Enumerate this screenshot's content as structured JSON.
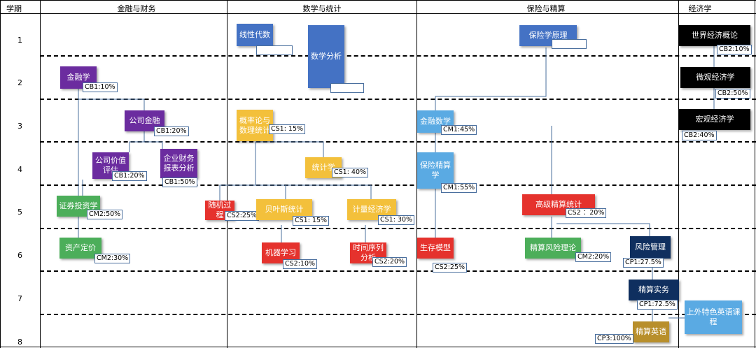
{
  "headers": {
    "semester": "学期",
    "finance": "金融与财务",
    "math": "数学与统计",
    "insurance": "保险与精算",
    "economics": "经济学"
  },
  "semesters": [
    "1",
    "2",
    "3",
    "4",
    "5",
    "6",
    "7",
    "8"
  ],
  "courses": {
    "jinrongxue": {
      "name": "金融学",
      "tag": "CB1:10%"
    },
    "gongsijinrong": {
      "name": "公司金融",
      "tag": "CB1:20%"
    },
    "gongsijiazhi": {
      "name": "公司价值评估",
      "tag": "CB1:20%"
    },
    "qiyecaiwu": {
      "name": "企业财务报表分析",
      "tag": "CB1:50%"
    },
    "zhengquan": {
      "name": "证券投资学",
      "tag": "CM2:50%"
    },
    "zichandingjia": {
      "name": "资产定价",
      "tag": "CM2:30%"
    },
    "xianxingdaishu": {
      "name": "线性代数"
    },
    "shuxuefenxi": {
      "name": "数学分析"
    },
    "gailvlun": {
      "name": "概率论与数理统计",
      "tag": "CS1: 15%"
    },
    "tongjixue": {
      "name": "统计学",
      "tag": "CS1: 40%"
    },
    "suijiguocheng": {
      "name": "随机过程",
      "tag": "CS2:25%"
    },
    "beiyesi": {
      "name": "贝叶斯统计",
      "tag": "CS1: 15%"
    },
    "jiliang": {
      "name": "计量经济学",
      "tag": "CS1: 30%"
    },
    "jiqixuexi": {
      "name": "机器学习",
      "tag": "CS2:10%"
    },
    "shijianxulie": {
      "name": "时间序列分析",
      "tag": "CS2:20%"
    },
    "baoxianxue": {
      "name": "保险学原理"
    },
    "jinrongshuxue": {
      "name": "金融数学",
      "tag": "CM1:45%"
    },
    "baoxianjingsuan": {
      "name": "保险精算学",
      "tag": "CM1:55%"
    },
    "gaojijingsuan": {
      "name": "高级精算统计",
      "tag": "CS2 ：20%"
    },
    "shengcunmoxing": {
      "name": "生存模型",
      "tag": "CS2:25%"
    },
    "jingsuanfengxian": {
      "name": "精算风险理论",
      "tag": "CM2:20%"
    },
    "fengxianguanli": {
      "name": "风险管理",
      "tag": "CP1:27.5%"
    },
    "jingsuanshiwu": {
      "name": "精算实务",
      "tag": "CP1:72.5%"
    },
    "jingsuanyingyu": {
      "name": "精算英语",
      "tag": "CP3:100%"
    },
    "shangwai": {
      "name": "上外特色英语课程"
    },
    "shijiejingji": {
      "name": "世界经济概论",
      "tag": "CB2:10%"
    },
    "weiguan": {
      "name": "微观经济学",
      "tag": "CB2:50%"
    },
    "hongguan": {
      "name": "宏观经济学",
      "tag": "CB2:40%"
    }
  },
  "colors": {
    "finance": "#6b2c9f",
    "finance_green": "#4cae5a",
    "math_yellow": "#f3c03b",
    "math_blue": "#4472c4",
    "red": "#e5322d",
    "insurance_lightblue": "#5aaae3",
    "economics": "#000000",
    "navy": "#0f2f5f",
    "gold": "#b88f2b"
  }
}
